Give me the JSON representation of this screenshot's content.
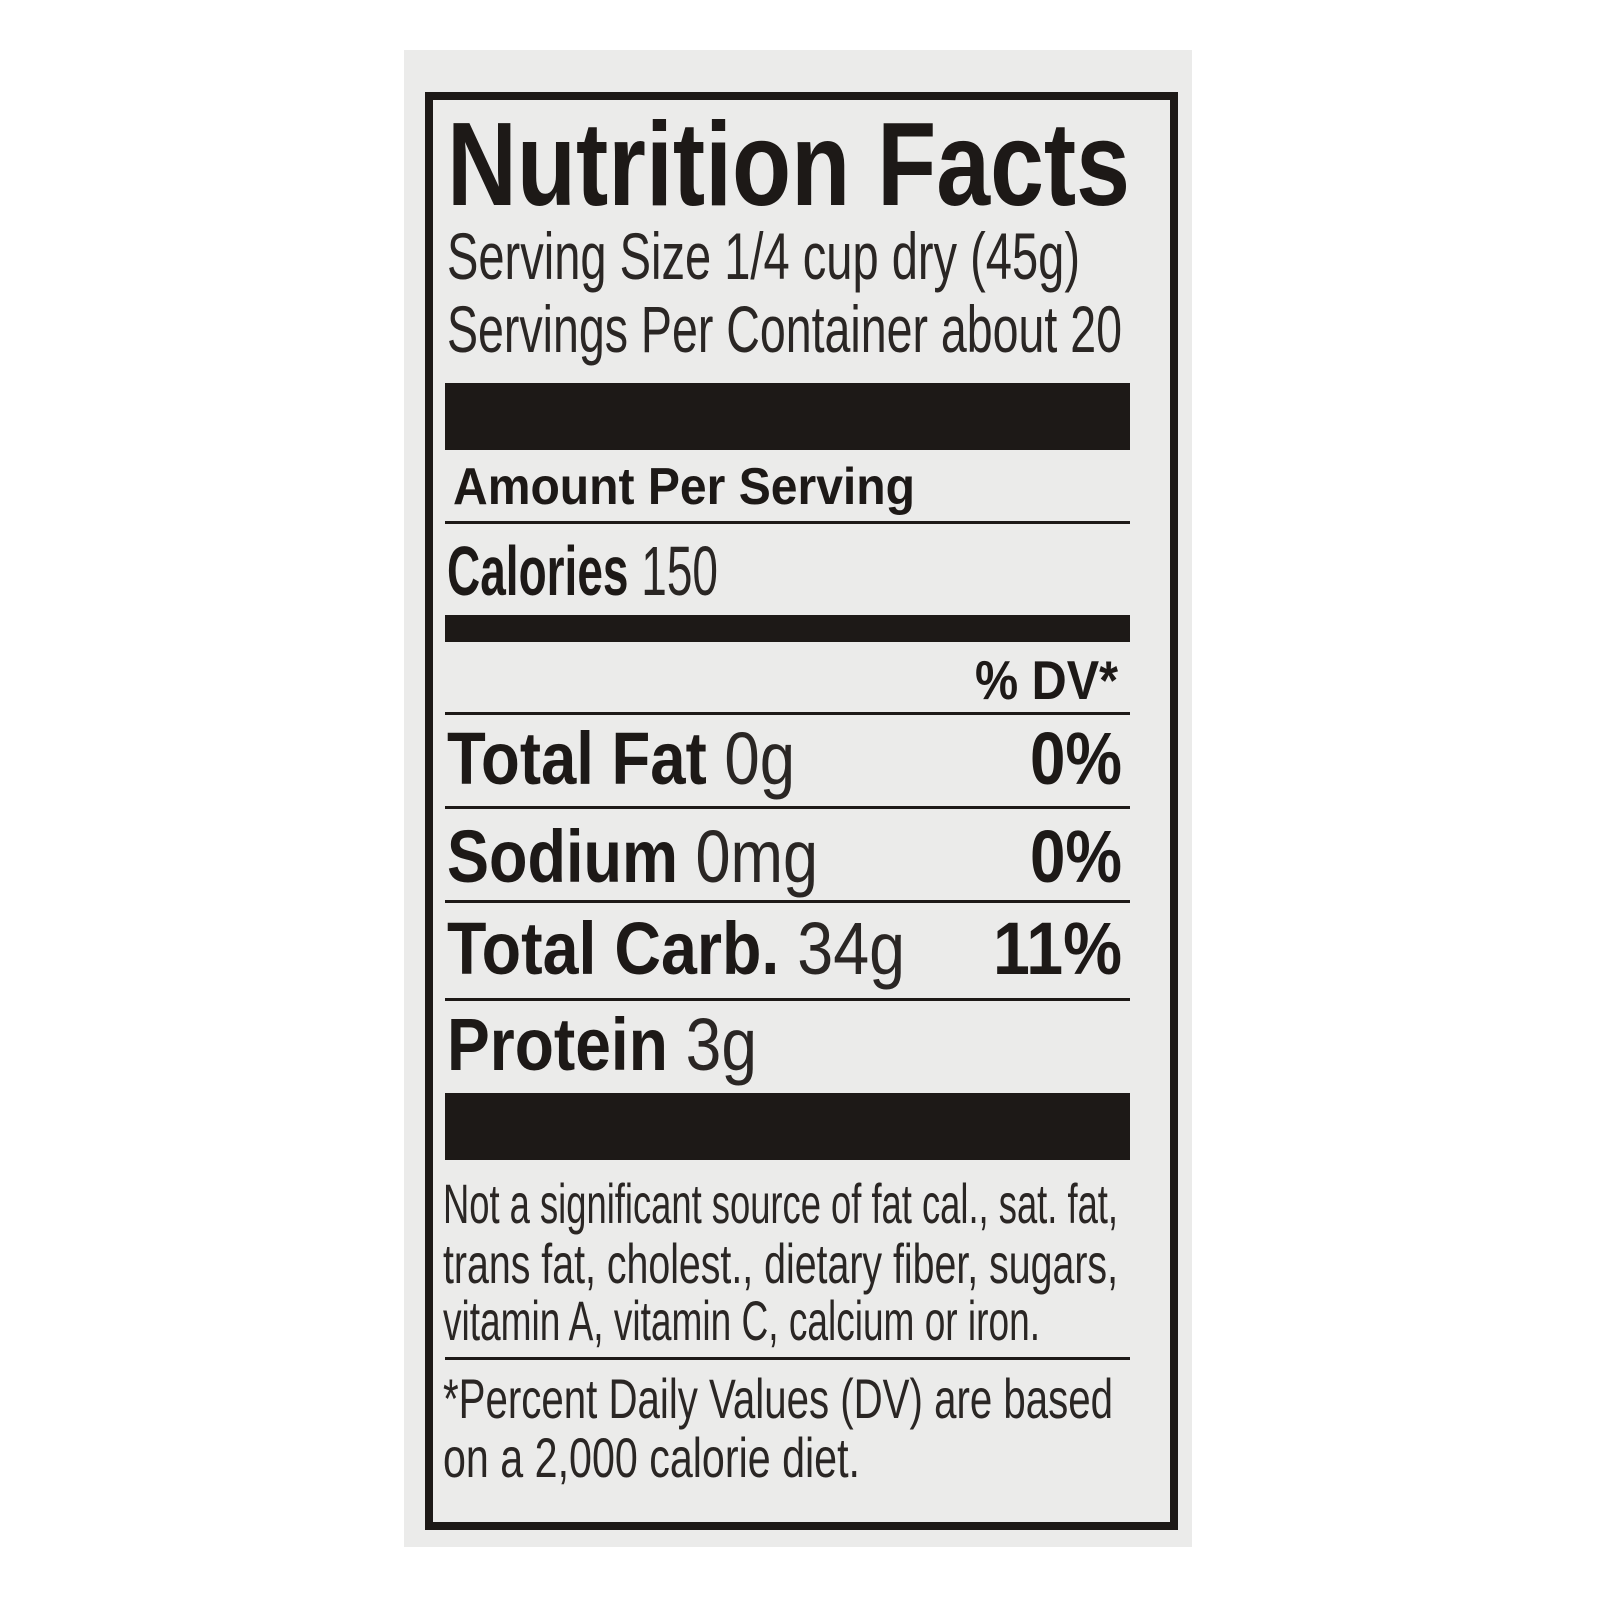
{
  "label": {
    "title": "Nutrition Facts",
    "serving_size": "Serving Size 1/4 cup dry (45g)",
    "servings_per_container": "Servings Per Container about 20",
    "amount_per_serving": "Amount Per Serving",
    "calories": {
      "label": "Calories",
      "value": "150"
    },
    "dv_header": "% DV*",
    "nutrients": [
      {
        "name": "Total Fat",
        "amount": "0g",
        "dv": "0%"
      },
      {
        "name": "Sodium",
        "amount": "0mg",
        "dv": "0%"
      },
      {
        "name": "Total Carb.",
        "amount": "34g",
        "dv": "11%"
      },
      {
        "name": "Protein",
        "amount": "3g"
      }
    ],
    "footnote_lines": [
      "Not a significant source of fat cal., sat. fat,",
      "trans fat, cholest., dietary fiber, sugars,",
      "vitamin A, vitamin C, calcium or iron."
    ],
    "dv_note_lines": [
      "*Percent Daily Values (DV) are based",
      "on a 2,000 calorie diet."
    ]
  },
  "colors": {
    "ink": "#1d1917",
    "label_background": "#ebebea",
    "page_background": "#ffffff"
  }
}
